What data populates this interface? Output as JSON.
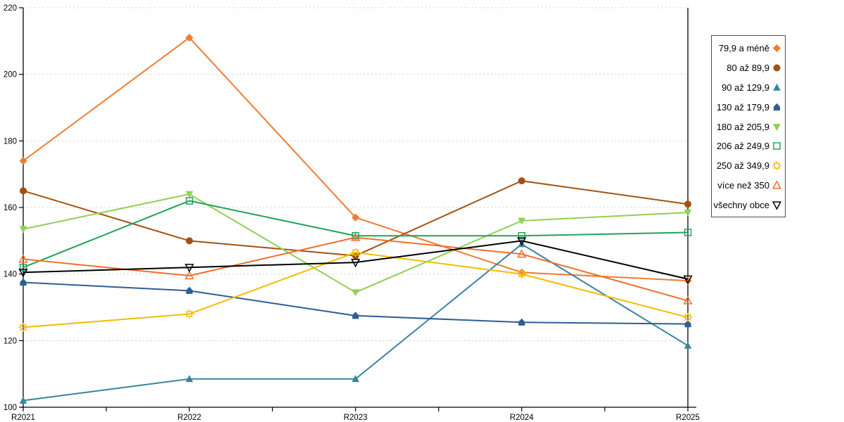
{
  "chart_data": {
    "type": "line",
    "title": "",
    "xlabel": "",
    "ylabel": "",
    "categories": [
      "R2021",
      "R2022",
      "R2023",
      "R2024",
      "R2025"
    ],
    "ylim": [
      100,
      220
    ],
    "yticks": [
      100,
      120,
      140,
      160,
      180,
      200,
      220
    ],
    "grid": "horizontal-dotted",
    "legend_position": "right",
    "axis_color": "#000000",
    "grid_color": "#bfbfbf",
    "series": [
      {
        "label": "79,9 a méně",
        "marker": "diamond",
        "fill": "solid",
        "color": "#ED7D31",
        "values": [
          174,
          211,
          157,
          140.5,
          138
        ]
      },
      {
        "label": "80 až 89,9",
        "marker": "circle",
        "fill": "solid",
        "color": "#A5500F",
        "values": [
          165,
          150,
          145.5,
          168,
          161
        ]
      },
      {
        "label": "90 až 129,9",
        "marker": "triangle-up",
        "fill": "solid",
        "color": "#38849F",
        "values": [
          102,
          108.5,
          108.5,
          149,
          118.5
        ]
      },
      {
        "label": "130 až 179,9",
        "marker": "pentagon",
        "fill": "solid",
        "color": "#2E5E93",
        "values": [
          137.5,
          135,
          127.5,
          125.5,
          125
        ]
      },
      {
        "label": "180 až 205,9",
        "marker": "triangle-down",
        "fill": "solid",
        "color": "#90D050",
        "values": [
          153.5,
          164,
          134.5,
          156,
          158.5
        ]
      },
      {
        "label": "206 až 249,9",
        "marker": "square",
        "fill": "open",
        "color": "#21A35B",
        "values": [
          142,
          162,
          151.5,
          151.5,
          152.5
        ]
      },
      {
        "label": "250 až 349,9",
        "marker": "sun",
        "fill": "open",
        "color": "#F2BD00",
        "values": [
          124,
          128,
          146.5,
          140,
          127
        ]
      },
      {
        "label": "více než 350",
        "marker": "triangle-up",
        "fill": "open",
        "color": "#F0702A",
        "values": [
          144.5,
          139.5,
          151,
          146,
          132
        ]
      },
      {
        "label": "všechny obce",
        "marker": "triangle-down",
        "fill": "open",
        "color": "#000000",
        "values": [
          140.5,
          142,
          143.5,
          150,
          138.5
        ]
      }
    ]
  }
}
